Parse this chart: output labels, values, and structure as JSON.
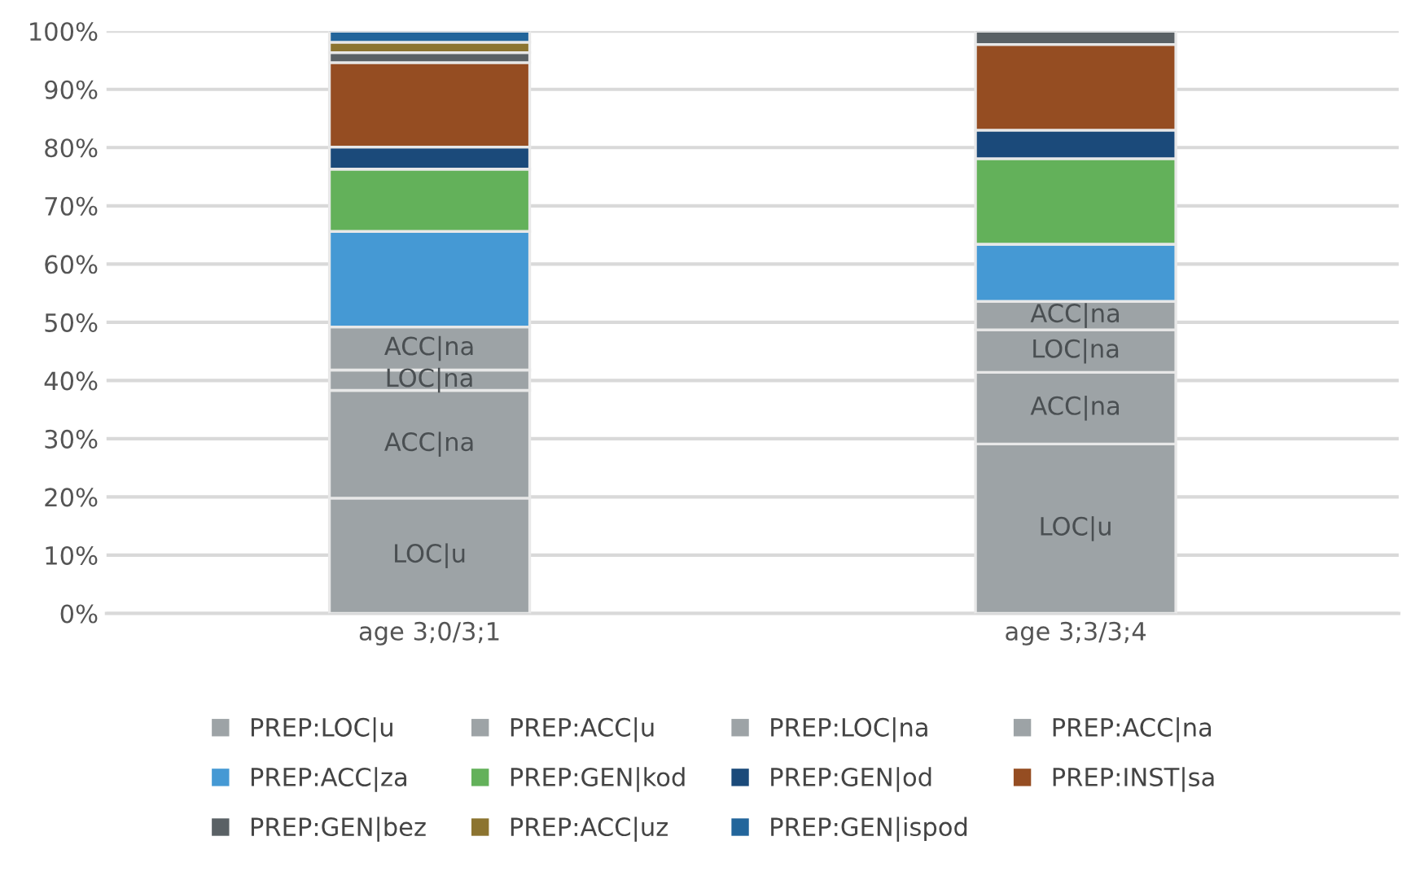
{
  "chart_data": {
    "type": "bar",
    "stacked": true,
    "categories": [
      "age 3;0/3;1",
      "age 3;3/3;4"
    ],
    "series": [
      {
        "name": "PREP:LOC|u",
        "color": "#9da3a6",
        "values": [
          19.8,
          29.1
        ],
        "value_labels": [
          "LOC|u",
          "LOC|u"
        ]
      },
      {
        "name": "PREP:ACC|u",
        "color": "#9da3a6",
        "values": [
          18.5,
          12.3
        ],
        "value_labels": [
          "ACC|na",
          "ACC|na"
        ]
      },
      {
        "name": "PREP:LOC|na",
        "color": "#9da3a6",
        "values": [
          3.5,
          7.3
        ],
        "value_labels": [
          "LOC|na",
          "LOC|na"
        ]
      },
      {
        "name": "PREP:ACC|na",
        "color": "#9da3a6",
        "values": [
          7.4,
          4.9
        ],
        "value_labels": [
          "ACC|na",
          "ACC|na"
        ]
      },
      {
        "name": "PREP:ACC|za",
        "color": "#4599d4",
        "values": [
          16.4,
          9.8
        ]
      },
      {
        "name": "PREP:GEN|kod",
        "color": "#63b15a",
        "values": [
          10.7,
          14.7
        ]
      },
      {
        "name": "PREP:GEN|od",
        "color": "#1b4a7a",
        "values": [
          3.8,
          4.9
        ]
      },
      {
        "name": "PREP:INST|sa",
        "color": "#954d22",
        "values": [
          14.5,
          14.7
        ]
      },
      {
        "name": "PREP:GEN|bez",
        "color": "#5a6165",
        "values": [
          1.7,
          2.3
        ]
      },
      {
        "name": "PREP:ACC|uz",
        "color": "#8c7430",
        "values": [
          1.8,
          null
        ]
      },
      {
        "name": "PREP:GEN|ispod",
        "color": "#22659b",
        "values": [
          1.9,
          null
        ]
      }
    ],
    "ylim": [
      0,
      100
    ],
    "yticks": [
      {
        "value": 0,
        "label": "0%"
      },
      {
        "value": 10,
        "label": "10%"
      },
      {
        "value": 20,
        "label": "20%"
      },
      {
        "value": 30,
        "label": "30%"
      },
      {
        "value": 40,
        "label": "40%"
      },
      {
        "value": 50,
        "label": "50%"
      },
      {
        "value": 60,
        "label": "60%"
      },
      {
        "value": 70,
        "label": "70%"
      },
      {
        "value": 80,
        "label": "80%"
      },
      {
        "value": 90,
        "label": "90%"
      },
      {
        "value": 100,
        "label": "100%"
      }
    ],
    "grid": "y",
    "legend": "bottom"
  }
}
